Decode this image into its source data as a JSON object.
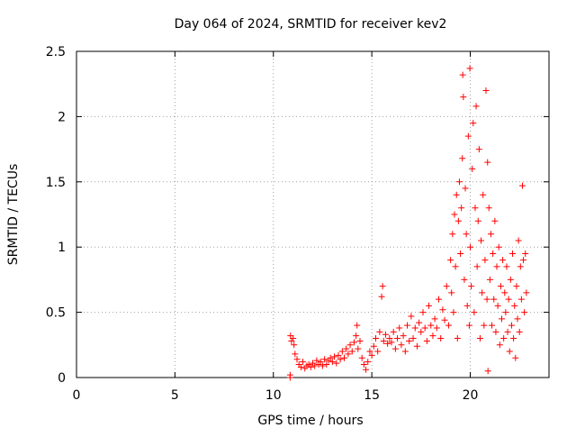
{
  "chart_data": {
    "type": "scatter",
    "title": "Day 064 of 2024, SRMTID for receiver kev2",
    "xlabel": "GPS time / hours",
    "ylabel": "SRMTID / TECUs",
    "xlim": [
      0,
      24
    ],
    "ylim": [
      0,
      2.5
    ],
    "xticks": [
      0,
      5,
      10,
      15,
      20
    ],
    "yticks": [
      0,
      0.5,
      1,
      1.5,
      2,
      2.5
    ],
    "xtick_labels": [
      "0",
      "5",
      "10",
      "15",
      "20"
    ],
    "ytick_labels": [
      "0",
      "0.5",
      "1",
      "1.5",
      "2",
      "2.5"
    ],
    "grid": true,
    "legend": "none",
    "marker": "plus",
    "colors": {
      "series": "#ff0000",
      "grid": "#a0a0a0",
      "axis": "#000000"
    },
    "series": [
      {
        "name": "kev2",
        "points": [
          [
            10.85,
            0.0
          ],
          [
            10.85,
            0.02
          ],
          [
            10.87,
            0.32
          ],
          [
            10.92,
            0.28
          ],
          [
            11.0,
            0.3
          ],
          [
            11.05,
            0.25
          ],
          [
            11.1,
            0.18
          ],
          [
            11.2,
            0.14
          ],
          [
            11.3,
            0.1
          ],
          [
            11.4,
            0.08
          ],
          [
            11.5,
            0.12
          ],
          [
            11.6,
            0.07
          ],
          [
            11.7,
            0.09
          ],
          [
            11.8,
            0.1
          ],
          [
            11.9,
            0.08
          ],
          [
            12.0,
            0.11
          ],
          [
            12.1,
            0.09
          ],
          [
            12.2,
            0.13
          ],
          [
            12.3,
            0.1
          ],
          [
            12.4,
            0.12
          ],
          [
            12.5,
            0.09
          ],
          [
            12.6,
            0.14
          ],
          [
            12.7,
            0.1
          ],
          [
            12.8,
            0.13
          ],
          [
            12.9,
            0.15
          ],
          [
            13.0,
            0.12
          ],
          [
            13.1,
            0.16
          ],
          [
            13.2,
            0.11
          ],
          [
            13.3,
            0.17
          ],
          [
            13.4,
            0.14
          ],
          [
            13.5,
            0.2
          ],
          [
            13.6,
            0.15
          ],
          [
            13.7,
            0.22
          ],
          [
            13.8,
            0.18
          ],
          [
            13.9,
            0.25
          ],
          [
            14.0,
            0.2
          ],
          [
            14.1,
            0.27
          ],
          [
            14.2,
            0.32
          ],
          [
            14.25,
            0.4
          ],
          [
            14.3,
            0.22
          ],
          [
            14.4,
            0.28
          ],
          [
            14.5,
            0.15
          ],
          [
            14.6,
            0.1
          ],
          [
            14.7,
            0.06
          ],
          [
            14.8,
            0.12
          ],
          [
            14.9,
            0.2
          ],
          [
            15.0,
            0.17
          ],
          [
            15.1,
            0.24
          ],
          [
            15.2,
            0.3
          ],
          [
            15.3,
            0.2
          ],
          [
            15.4,
            0.35
          ],
          [
            15.5,
            0.62
          ],
          [
            15.55,
            0.7
          ],
          [
            15.6,
            0.28
          ],
          [
            15.7,
            0.33
          ],
          [
            15.8,
            0.26
          ],
          [
            15.9,
            0.3
          ],
          [
            16.0,
            0.27
          ],
          [
            16.1,
            0.35
          ],
          [
            16.2,
            0.22
          ],
          [
            16.3,
            0.3
          ],
          [
            16.4,
            0.38
          ],
          [
            16.5,
            0.25
          ],
          [
            16.6,
            0.32
          ],
          [
            16.7,
            0.2
          ],
          [
            16.8,
            0.4
          ],
          [
            16.9,
            0.28
          ],
          [
            17.0,
            0.47
          ],
          [
            17.1,
            0.3
          ],
          [
            17.2,
            0.38
          ],
          [
            17.3,
            0.24
          ],
          [
            17.4,
            0.42
          ],
          [
            17.5,
            0.35
          ],
          [
            17.6,
            0.5
          ],
          [
            17.7,
            0.38
          ],
          [
            17.8,
            0.28
          ],
          [
            17.9,
            0.55
          ],
          [
            18.0,
            0.4
          ],
          [
            18.1,
            0.32
          ],
          [
            18.2,
            0.45
          ],
          [
            18.3,
            0.38
          ],
          [
            18.4,
            0.6
          ],
          [
            18.5,
            0.3
          ],
          [
            18.6,
            0.52
          ],
          [
            18.7,
            0.44
          ],
          [
            18.8,
            0.7
          ],
          [
            18.9,
            0.4
          ],
          [
            19.0,
            0.9
          ],
          [
            19.05,
            0.65
          ],
          [
            19.1,
            1.1
          ],
          [
            19.15,
            0.5
          ],
          [
            19.2,
            1.25
          ],
          [
            19.25,
            0.85
          ],
          [
            19.3,
            1.4
          ],
          [
            19.35,
            0.3
          ],
          [
            19.4,
            1.2
          ],
          [
            19.45,
            1.5
          ],
          [
            19.5,
            0.95
          ],
          [
            19.55,
            1.3
          ],
          [
            19.6,
            1.68
          ],
          [
            19.62,
            2.32
          ],
          [
            19.65,
            2.15
          ],
          [
            19.7,
            0.75
          ],
          [
            19.75,
            1.45
          ],
          [
            19.8,
            1.1
          ],
          [
            19.85,
            0.55
          ],
          [
            19.9,
            1.85
          ],
          [
            19.95,
            0.4
          ],
          [
            19.98,
            2.37
          ],
          [
            20.0,
            1.0
          ],
          [
            20.05,
            0.7
          ],
          [
            20.1,
            1.6
          ],
          [
            20.15,
            1.95
          ],
          [
            20.2,
            0.5
          ],
          [
            20.25,
            1.3
          ],
          [
            20.3,
            2.08
          ],
          [
            20.35,
            0.85
          ],
          [
            20.4,
            1.2
          ],
          [
            20.45,
            1.75
          ],
          [
            20.5,
            0.3
          ],
          [
            20.55,
            1.05
          ],
          [
            20.6,
            0.65
          ],
          [
            20.65,
            1.4
          ],
          [
            20.7,
            0.4
          ],
          [
            20.75,
            0.9
          ],
          [
            20.8,
            2.2
          ],
          [
            20.85,
            0.6
          ],
          [
            20.88,
            1.65
          ],
          [
            20.9,
            0.05
          ],
          [
            20.95,
            1.3
          ],
          [
            21.0,
            0.75
          ],
          [
            21.05,
            1.1
          ],
          [
            21.1,
            0.4
          ],
          [
            21.15,
            0.95
          ],
          [
            21.2,
            0.6
          ],
          [
            21.25,
            1.2
          ],
          [
            21.3,
            0.35
          ],
          [
            21.35,
            0.85
          ],
          [
            21.4,
            0.55
          ],
          [
            21.45,
            1.0
          ],
          [
            21.5,
            0.25
          ],
          [
            21.55,
            0.7
          ],
          [
            21.6,
            0.45
          ],
          [
            21.65,
            0.9
          ],
          [
            21.7,
            0.3
          ],
          [
            21.75,
            0.65
          ],
          [
            21.8,
            0.5
          ],
          [
            21.85,
            0.85
          ],
          [
            21.9,
            0.35
          ],
          [
            21.95,
            0.6
          ],
          [
            22.0,
            0.2
          ],
          [
            22.05,
            0.75
          ],
          [
            22.1,
            0.4
          ],
          [
            22.15,
            0.95
          ],
          [
            22.2,
            0.3
          ],
          [
            22.25,
            0.55
          ],
          [
            22.3,
            0.15
          ],
          [
            22.35,
            0.7
          ],
          [
            22.4,
            0.45
          ],
          [
            22.45,
            1.05
          ],
          [
            22.5,
            0.35
          ],
          [
            22.55,
            0.85
          ],
          [
            22.6,
            0.6
          ],
          [
            22.65,
            1.47
          ],
          [
            22.7,
            0.9
          ],
          [
            22.75,
            0.5
          ],
          [
            22.8,
            0.95
          ],
          [
            22.85,
            0.65
          ]
        ]
      }
    ]
  }
}
